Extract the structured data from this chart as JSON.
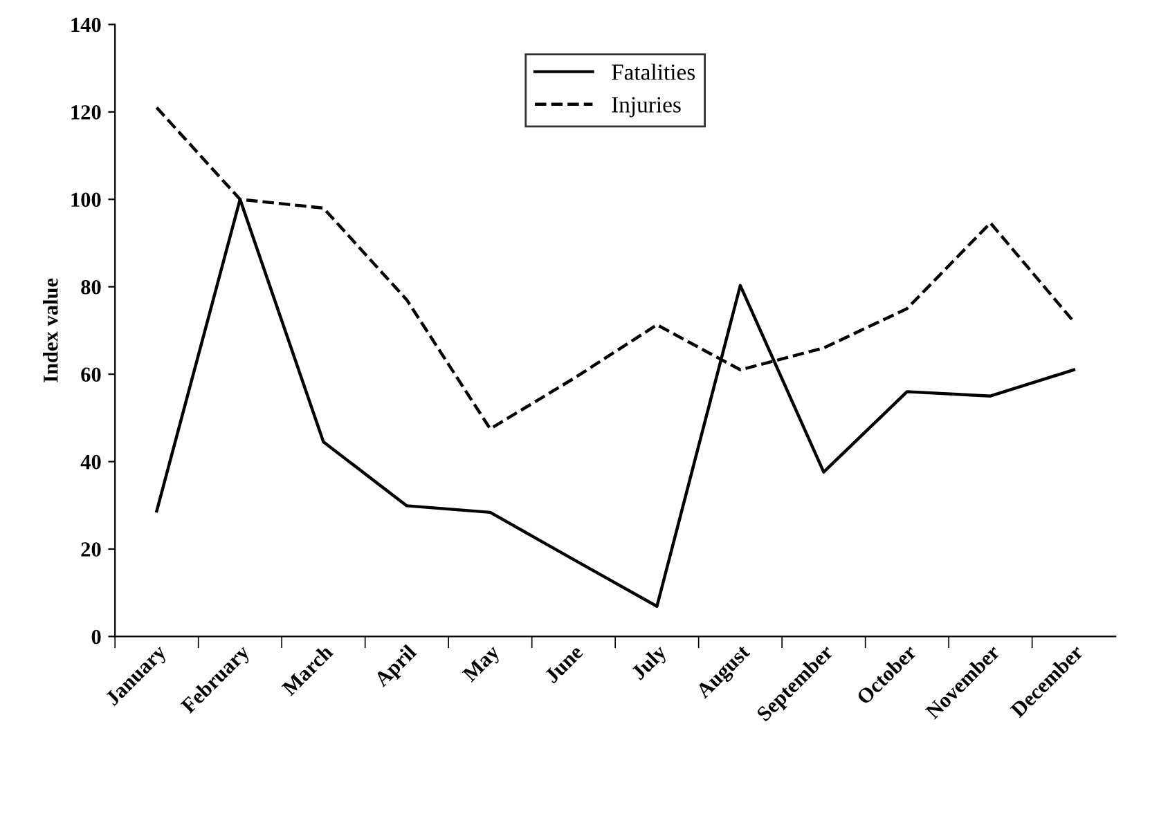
{
  "chart_data": {
    "type": "line",
    "ylabel": "Index value",
    "categories": [
      "January",
      "February",
      "March",
      "April",
      "May",
      "June",
      "July",
      "August",
      "September",
      "October",
      "November",
      "December"
    ],
    "series": [
      {
        "name": "Fatalities",
        "color": "#000000",
        "line_style": "solid",
        "values": [
          28.7,
          100,
          44.5,
          29.9,
          28.4,
          17.6,
          6.9,
          80.3,
          37.6,
          56,
          55,
          61
        ]
      },
      {
        "name": "Injuries",
        "color": "#000000",
        "line_style": "dashed",
        "values": [
          121,
          100,
          98,
          77,
          47.5,
          59,
          71.3,
          61,
          66,
          75,
          94.6,
          72
        ]
      }
    ],
    "ylim": [
      0,
      140
    ],
    "yticks": [
      0,
      20,
      40,
      60,
      80,
      100,
      120,
      140
    ],
    "grid": false,
    "legend": "top",
    "marker": "none"
  }
}
